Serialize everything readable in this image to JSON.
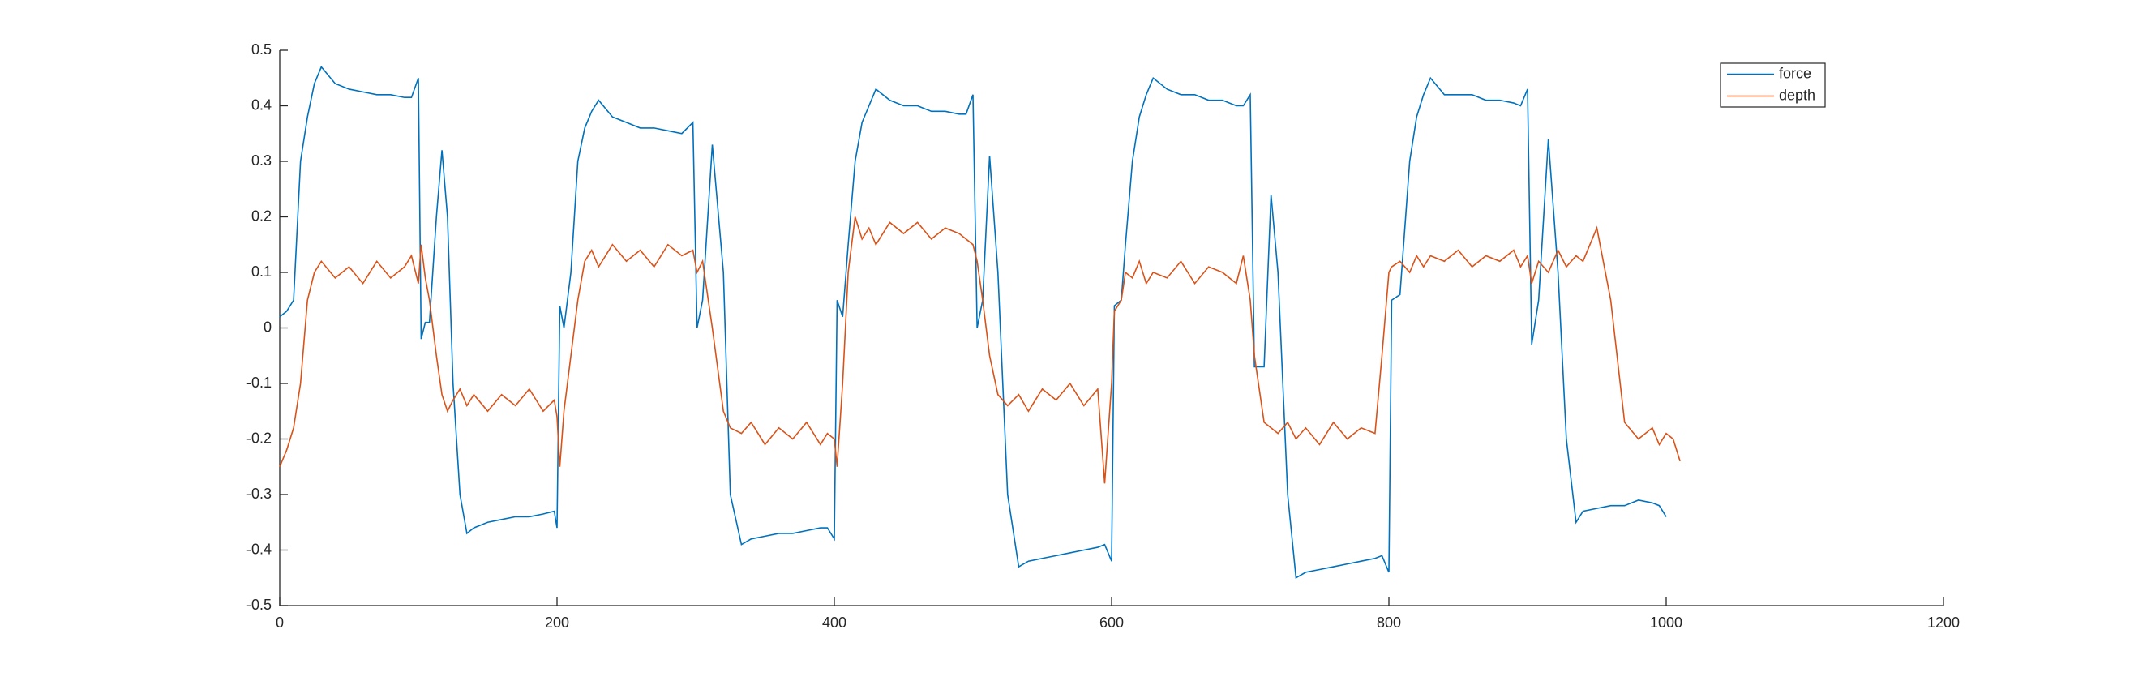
{
  "chart_data": {
    "type": "line",
    "x": [
      0,
      5,
      10,
      15,
      20,
      25,
      30,
      40,
      50,
      60,
      70,
      80,
      90,
      95,
      100,
      102,
      105,
      108,
      113,
      117,
      121,
      125,
      130,
      135,
      140,
      150,
      160,
      170,
      180,
      190,
      198,
      200,
      202,
      205,
      210,
      215,
      220,
      225,
      230,
      240,
      250,
      260,
      270,
      280,
      290,
      298,
      301,
      305,
      312,
      320,
      325,
      333,
      340,
      350,
      360,
      370,
      380,
      390,
      395,
      400,
      402,
      406,
      410,
      415,
      420,
      425,
      430,
      440,
      450,
      460,
      470,
      480,
      490,
      495,
      500,
      503,
      507,
      512,
      518,
      525,
      533,
      540,
      550,
      560,
      570,
      580,
      590,
      595,
      600,
      602,
      607,
      610,
      615,
      620,
      625,
      630,
      640,
      650,
      660,
      670,
      680,
      690,
      695,
      700,
      703,
      710,
      715,
      720,
      727,
      733,
      740,
      750,
      760,
      770,
      780,
      790,
      795,
      800,
      802,
      808,
      815,
      820,
      825,
      830,
      840,
      850,
      860,
      870,
      880,
      890,
      895,
      900,
      903,
      908,
      915,
      922,
      928,
      935,
      940,
      950,
      960,
      970,
      980,
      990,
      995,
      1000,
      1005,
      1010
    ],
    "series": [
      {
        "name": "force",
        "color": "#0072BD",
        "values": [
          0.02,
          0.03,
          0.05,
          0.3,
          0.38,
          0.44,
          0.47,
          0.44,
          0.43,
          0.425,
          0.42,
          0.42,
          0.415,
          0.415,
          0.45,
          -0.02,
          0.01,
          0.01,
          0.2,
          0.32,
          0.2,
          -0.1,
          -0.3,
          -0.37,
          -0.36,
          -0.35,
          -0.345,
          -0.34,
          -0.34,
          -0.335,
          -0.33,
          -0.36,
          0.04,
          0.0,
          0.1,
          0.3,
          0.36,
          0.39,
          0.41,
          0.38,
          0.37,
          0.36,
          0.36,
          0.355,
          0.35,
          0.37,
          0.0,
          0.05,
          0.33,
          0.1,
          -0.3,
          -0.39,
          -0.38,
          -0.375,
          -0.37,
          -0.37,
          -0.365,
          -0.36,
          -0.36,
          -0.38,
          0.05,
          0.02,
          0.15,
          0.3,
          0.37,
          0.4,
          0.43,
          0.41,
          0.4,
          0.4,
          0.39,
          0.39,
          0.385,
          0.385,
          0.42,
          0.0,
          0.05,
          0.31,
          0.1,
          -0.3,
          -0.43,
          -0.42,
          -0.415,
          -0.41,
          -0.405,
          -0.4,
          -0.395,
          -0.39,
          -0.42,
          0.04,
          0.05,
          0.15,
          0.3,
          0.38,
          0.42,
          0.45,
          0.43,
          0.42,
          0.42,
          0.41,
          0.41,
          0.4,
          0.4,
          0.42,
          -0.07,
          -0.07,
          0.24,
          0.1,
          -0.3,
          -0.45,
          -0.44,
          -0.435,
          -0.43,
          -0.425,
          -0.42,
          -0.415,
          -0.41,
          -0.44,
          0.05,
          0.06,
          0.3,
          0.38,
          0.42,
          0.45,
          0.42,
          0.42,
          0.42,
          0.41,
          0.41,
          0.405,
          0.4,
          0.43,
          -0.03,
          0.05,
          0.34,
          0.1,
          -0.2,
          -0.35,
          -0.33,
          -0.325,
          -0.32,
          -0.32,
          -0.31,
          -0.315,
          -0.32,
          -0.34,
          null,
          null
        ]
      },
      {
        "name": "depth",
        "color": "#D95319",
        "values": [
          -0.25,
          -0.22,
          -0.18,
          -0.1,
          0.05,
          0.1,
          0.12,
          0.09,
          0.11,
          0.08,
          0.12,
          0.09,
          0.11,
          0.13,
          0.08,
          0.15,
          0.09,
          0.05,
          -0.05,
          -0.12,
          -0.15,
          -0.13,
          -0.11,
          -0.14,
          -0.12,
          -0.15,
          -0.12,
          -0.14,
          -0.11,
          -0.15,
          -0.13,
          -0.16,
          -0.25,
          -0.15,
          -0.05,
          0.05,
          0.12,
          0.14,
          0.11,
          0.15,
          0.12,
          0.14,
          0.11,
          0.15,
          0.13,
          0.14,
          0.1,
          0.12,
          0.0,
          -0.15,
          -0.18,
          -0.19,
          -0.17,
          -0.21,
          -0.18,
          -0.2,
          -0.17,
          -0.21,
          -0.19,
          -0.2,
          -0.25,
          -0.1,
          0.1,
          0.2,
          0.16,
          0.18,
          0.15,
          0.19,
          0.17,
          0.19,
          0.16,
          0.18,
          0.17,
          0.16,
          0.15,
          0.12,
          0.05,
          -0.05,
          -0.12,
          -0.14,
          -0.12,
          -0.15,
          -0.11,
          -0.13,
          -0.1,
          -0.14,
          -0.11,
          -0.28,
          -0.1,
          0.03,
          0.05,
          0.1,
          0.09,
          0.12,
          0.08,
          0.1,
          0.09,
          0.12,
          0.08,
          0.11,
          0.1,
          0.08,
          0.13,
          0.05,
          -0.05,
          -0.17,
          -0.18,
          -0.19,
          -0.17,
          -0.2,
          -0.18,
          -0.21,
          -0.17,
          -0.2,
          -0.18,
          -0.19,
          -0.05,
          0.1,
          0.11,
          0.12,
          0.1,
          0.13,
          0.11,
          0.13,
          0.12,
          0.14,
          0.11,
          0.13,
          0.12,
          0.14,
          0.11,
          0.13,
          0.08,
          0.12,
          0.1,
          0.14,
          0.11,
          0.13,
          0.12,
          0.18,
          0.05,
          -0.17,
          -0.2,
          -0.18,
          -0.21,
          -0.19,
          -0.2,
          -0.24
        ]
      }
    ],
    "xlim": [
      0,
      1200
    ],
    "xticks": [
      0,
      200,
      400,
      600,
      800,
      1000,
      1200
    ],
    "ylim": [
      -0.5,
      0.5
    ],
    "yticks": [
      -0.5,
      -0.4,
      -0.3,
      -0.2,
      -0.1,
      0,
      0.1,
      0.2,
      0.3,
      0.4,
      0.5
    ],
    "legend": "northeast"
  }
}
